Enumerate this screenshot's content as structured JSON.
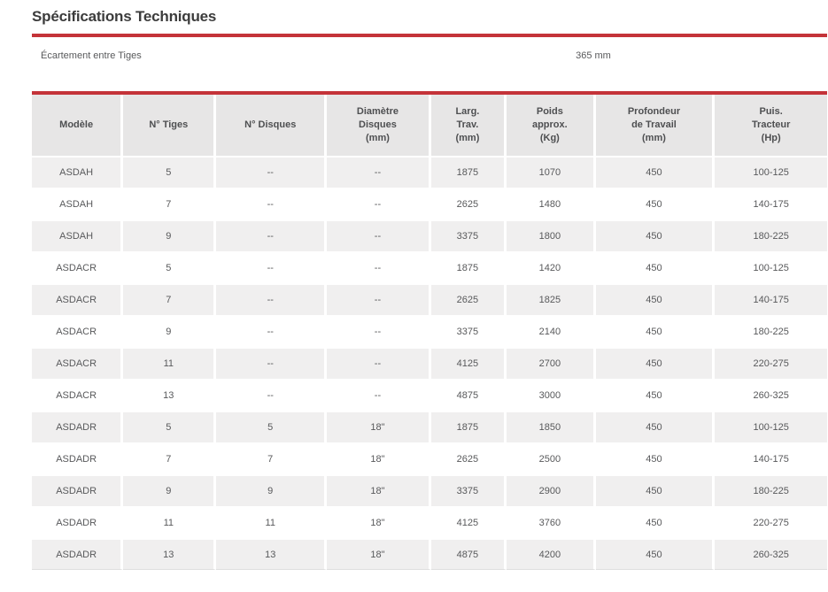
{
  "page": {
    "title": "Spécifications Techniques"
  },
  "spec_row": {
    "label": "Écartement entre Tiges",
    "value": "365 mm"
  },
  "table": {
    "headers": [
      "Modèle",
      "N° Tiges",
      "N° Disques",
      "Diamètre\nDisques\n(mm)",
      "Larg.\nTrav.\n(mm)",
      "Poids\napprox.\n(Kg)",
      "Profondeur\nde Travail\n(mm)",
      "Puis.\nTracteur\n(Hp)"
    ],
    "rows": [
      [
        "ASDAH",
        "5",
        "--",
        "--",
        "1875",
        "1070",
        "450",
        "100-125"
      ],
      [
        "ASDAH",
        "7",
        "--",
        "--",
        "2625",
        "1480",
        "450",
        "140-175"
      ],
      [
        "ASDAH",
        "9",
        "--",
        "--",
        "3375",
        "1800",
        "450",
        "180-225"
      ],
      [
        "ASDACR",
        "5",
        "--",
        "--",
        "1875",
        "1420",
        "450",
        "100-125"
      ],
      [
        "ASDACR",
        "7",
        "--",
        "--",
        "2625",
        "1825",
        "450",
        "140-175"
      ],
      [
        "ASDACR",
        "9",
        "--",
        "--",
        "3375",
        "2140",
        "450",
        "180-225"
      ],
      [
        "ASDACR",
        "11",
        "--",
        "--",
        "4125",
        "2700",
        "450",
        "220-275"
      ],
      [
        "ASDACR",
        "13",
        "--",
        "--",
        "4875",
        "3000",
        "450",
        "260-325"
      ],
      [
        "ASDADR",
        "5",
        "5",
        "18\"",
        "1875",
        "1850",
        "450",
        "100-125"
      ],
      [
        "ASDADR",
        "7",
        "7",
        "18\"",
        "2625",
        "2500",
        "450",
        "140-175"
      ],
      [
        "ASDADR",
        "9",
        "9",
        "18\"",
        "3375",
        "2900",
        "450",
        "180-225"
      ],
      [
        "ASDADR",
        "11",
        "11",
        "18\"",
        "4125",
        "3760",
        "450",
        "220-275"
      ],
      [
        "ASDADR",
        "13",
        "13",
        "18\"",
        "4875",
        "4200",
        "450",
        "260-325"
      ]
    ]
  },
  "colors": {
    "accent_red": "#c43339",
    "header_bg": "#e7e6e6",
    "row_alt_bg": "#f0efef",
    "body_text": "#58595b",
    "title_text": "#3c3c3c"
  }
}
